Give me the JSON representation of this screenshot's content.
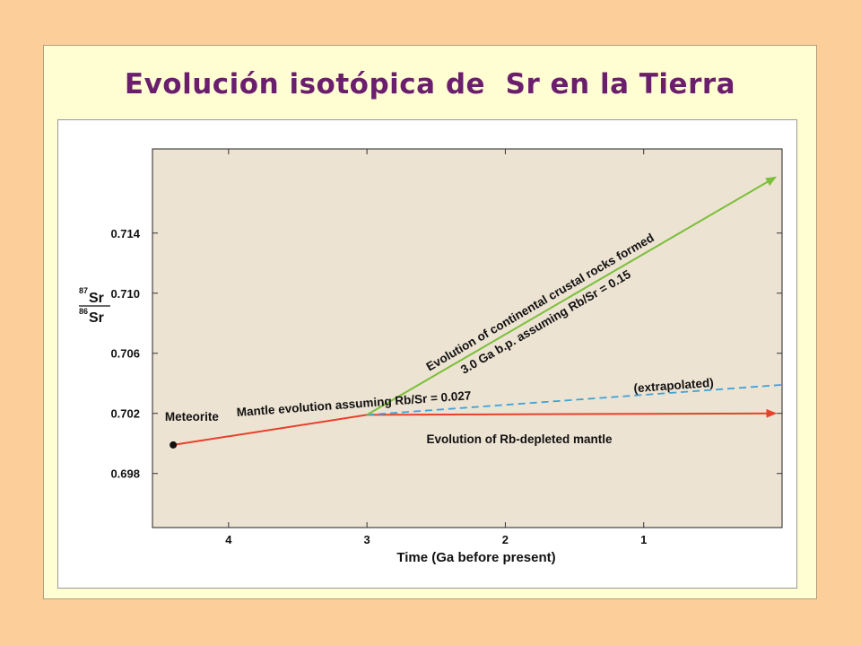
{
  "slide": {
    "title": "Evolución isotópica de  Sr en la Tierra"
  },
  "chart_data": {
    "type": "line",
    "xlabel": "Time (Ga before present)",
    "ylabel": {
      "numerator_mass": "87",
      "numerator": "Sr",
      "denominator_mass": "86",
      "denominator": "Sr"
    },
    "xlim": [
      4.55,
      0
    ],
    "ylim": [
      0.6944,
      0.7196
    ],
    "x_ticks": [
      4,
      3,
      2,
      1
    ],
    "x_tick_labels": [
      "4",
      "3",
      "2",
      "1"
    ],
    "y_ticks": [
      0.698,
      0.702,
      0.706,
      0.71,
      0.714
    ],
    "y_tick_labels": [
      "0.698",
      "0.702",
      "0.706",
      "0.710",
      "0.714"
    ],
    "grid": false,
    "background_color": "#ede3d3",
    "series": [
      {
        "id": "rb-depleted",
        "x": [
          4.4,
          3.0,
          0.05
        ],
        "y": [
          0.6999,
          0.7019,
          0.702
        ],
        "color": "#e8402a",
        "style": "solid",
        "arrow": true
      },
      {
        "id": "mantle-rbsr",
        "x": [
          3.0,
          0.0
        ],
        "y": [
          0.7019,
          0.7039
        ],
        "color": "#3ea3d8",
        "style": "dashed",
        "arrow": false
      },
      {
        "id": "continental-crust",
        "x": [
          3.0,
          0.05
        ],
        "y": [
          0.7019,
          0.7177
        ],
        "color": "#7bbf3a",
        "style": "solid",
        "arrow": true
      }
    ],
    "points": [
      {
        "id": "meteorite",
        "x": 4.4,
        "y": 0.6999,
        "color": "#111111"
      }
    ],
    "annotations": [
      {
        "id": "meteorite",
        "text": "Meteorite",
        "x": 4.46,
        "y": 0.7015
      },
      {
        "id": "mantle",
        "text": "Mantle evolution assuming Rb/Sr = 0.027",
        "x": 3.94,
        "y": 0.7018
      },
      {
        "id": "extrapolated",
        "text": "(extrapolated)",
        "x": 1.07,
        "y": 0.7034
      },
      {
        "id": "depleted",
        "text": "Evolution of Rb-depleted mantle",
        "x": 2.57,
        "y": 0.7
      },
      {
        "id": "crust-1",
        "text": "Evolution of continental crustal rocks formed",
        "x": 2.55,
        "y": 0.7048
      },
      {
        "id": "crust-2",
        "text": "3.0 Ga b.p. assuming Rb/Sr = 0.15",
        "x": 2.3,
        "y": 0.7046
      }
    ]
  }
}
